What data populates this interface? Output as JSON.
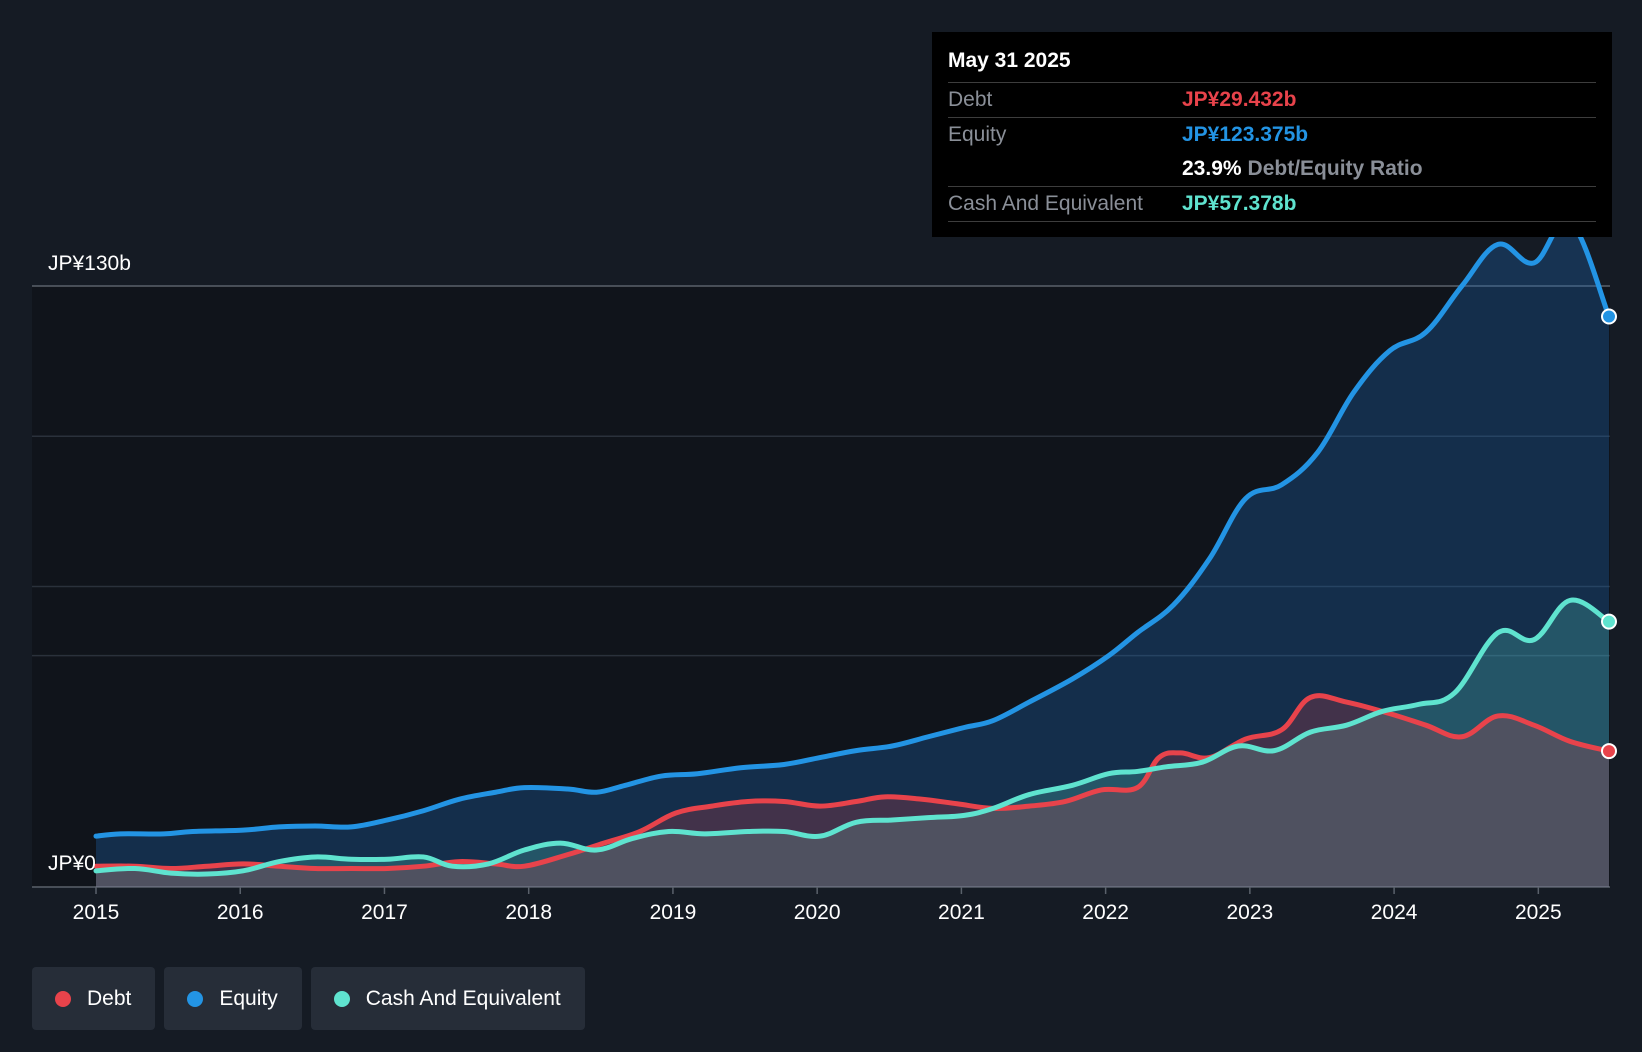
{
  "tooltip": {
    "date": "May 31 2025",
    "debt_label": "Debt",
    "debt_value": "JP¥29.432b",
    "equity_label": "Equity",
    "equity_value": "JP¥123.375b",
    "ratio_value": "23.9%",
    "ratio_label": "Debt/Equity Ratio",
    "cash_label": "Cash And Equivalent",
    "cash_value": "JP¥57.378b"
  },
  "legend": [
    {
      "label": "Debt",
      "color": "#e8434b"
    },
    {
      "label": "Equity",
      "color": "#2394e4"
    },
    {
      "label": "Cash And Equivalent",
      "color": "#5fe3cf"
    }
  ],
  "chart_data": {
    "type": "area",
    "y_top_label": "JP¥130b",
    "y_bottom_label": "JP¥0",
    "ylim": [
      0,
      130
    ],
    "xlim": [
      2014.93,
      2025.42
    ],
    "x_ticks": [
      "2015",
      "2016",
      "2017",
      "2018",
      "2019",
      "2020",
      "2021",
      "2022",
      "2023",
      "2024",
      "2025"
    ],
    "colors": {
      "debt": "#e8434b",
      "equity": "#2394e4",
      "cash": "#5fe3cf"
    },
    "series": [
      {
        "name": "Equity",
        "key": "equity",
        "x": [
          2014.93,
          2015.1,
          2015.4,
          2015.6,
          2015.95,
          2016.2,
          2016.45,
          2016.7,
          2016.95,
          2017.2,
          2017.45,
          2017.7,
          2017.9,
          2018.2,
          2018.4,
          2018.6,
          2018.85,
          2019.1,
          2019.4,
          2019.7,
          2019.95,
          2020.2,
          2020.45,
          2020.7,
          2020.95,
          2021.15,
          2021.4,
          2021.7,
          2021.95,
          2022.15,
          2022.4,
          2022.65,
          2022.9,
          2023.15,
          2023.4,
          2023.65,
          2023.9,
          2024.15,
          2024.4,
          2024.65,
          2024.9,
          2025.15,
          2025.42
        ],
        "values": [
          11,
          11.5,
          11.5,
          12,
          12.3,
          13,
          13.2,
          13,
          14.5,
          16.5,
          19,
          20.5,
          21.5,
          21.2,
          20.5,
          22,
          24,
          24.5,
          25.8,
          26.5,
          28,
          29.5,
          30.5,
          32.5,
          34.5,
          36,
          40,
          45,
          50,
          55,
          61,
          71,
          84,
          87,
          94,
          107,
          116,
          120,
          130,
          139,
          135,
          144,
          123.4
        ]
      },
      {
        "name": "Debt",
        "key": "debt",
        "x": [
          2014.93,
          2015.2,
          2015.45,
          2015.7,
          2015.95,
          2016.2,
          2016.45,
          2016.7,
          2016.95,
          2017.2,
          2017.45,
          2017.7,
          2017.9,
          2018.2,
          2018.45,
          2018.7,
          2018.95,
          2019.2,
          2019.45,
          2019.7,
          2019.95,
          2020.2,
          2020.4,
          2020.65,
          2020.9,
          2021.15,
          2021.4,
          2021.65,
          2021.9,
          2022.15,
          2022.3,
          2022.45,
          2022.65,
          2022.9,
          2023.15,
          2023.35,
          2023.6,
          2023.9,
          2024.15,
          2024.4,
          2024.65,
          2024.9,
          2025.15,
          2025.42
        ],
        "values": [
          4.5,
          4.5,
          4,
          4.5,
          5,
          4.5,
          4,
          4,
          4,
          4.5,
          5.5,
          5,
          4.5,
          7,
          9.5,
          12,
          16,
          17.5,
          18.5,
          18.5,
          17.5,
          18.5,
          19.5,
          19,
          18,
          17,
          17.5,
          18.5,
          21,
          21.5,
          28,
          29,
          28,
          32,
          34,
          41,
          40,
          37.5,
          35,
          32.5,
          37,
          35,
          31.5,
          29.4
        ]
      },
      {
        "name": "Cash And Equivalent",
        "key": "cash",
        "x": [
          2014.93,
          2015.2,
          2015.45,
          2015.7,
          2015.95,
          2016.2,
          2016.45,
          2016.7,
          2016.95,
          2017.2,
          2017.4,
          2017.65,
          2017.9,
          2018.15,
          2018.4,
          2018.65,
          2018.9,
          2019.15,
          2019.45,
          2019.7,
          2019.95,
          2020.2,
          2020.45,
          2020.7,
          2020.95,
          2021.15,
          2021.4,
          2021.7,
          2021.95,
          2022.15,
          2022.35,
          2022.6,
          2022.85,
          2023.1,
          2023.35,
          2023.6,
          2023.85,
          2024.1,
          2024.35,
          2024.65,
          2024.9,
          2025.15,
          2025.42
        ],
        "values": [
          3.5,
          4,
          3,
          2.8,
          3.5,
          5.5,
          6.5,
          6,
          6,
          6.5,
          4.5,
          5,
          8,
          9.5,
          8,
          10.5,
          12,
          11.5,
          12,
          12,
          11,
          14,
          14.5,
          15,
          15.5,
          17,
          20,
          22,
          24.5,
          25,
          26,
          27,
          30.5,
          29.5,
          33.5,
          35,
          38,
          39.5,
          42,
          55,
          53.5,
          62,
          57.4
        ]
      }
    ]
  }
}
